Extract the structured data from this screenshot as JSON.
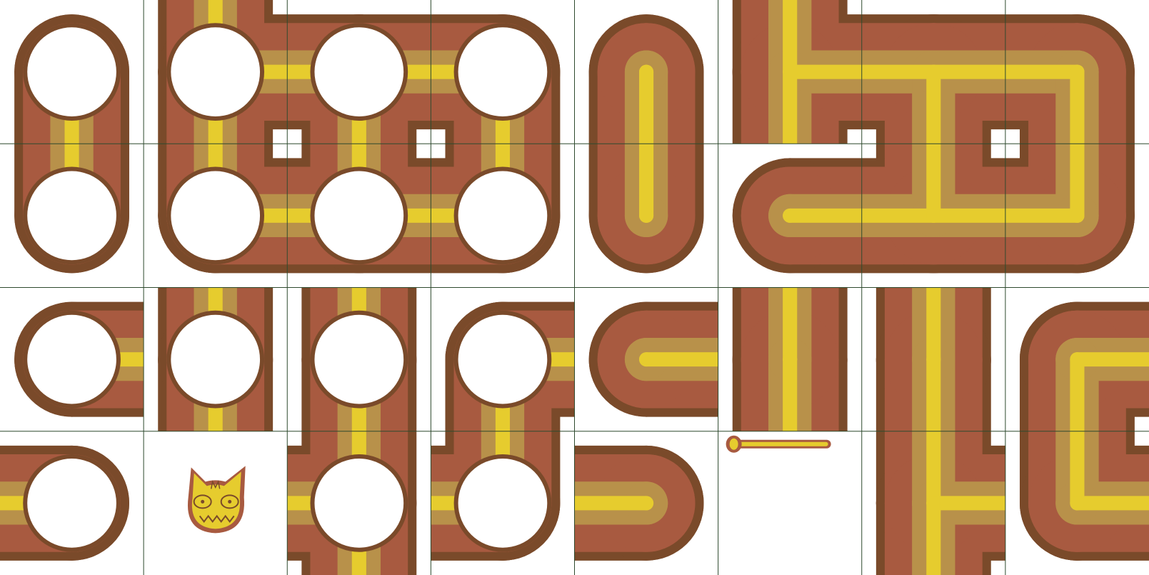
{
  "game": {
    "columns": 8,
    "rows": 4,
    "colors": {
      "background": "#ffffff",
      "grid": "#2e4a2e",
      "pipe_outline": "#7a4a2a",
      "pipe_body": "#a85a40",
      "pipe_glaze": "#b8914a",
      "pipe_core": "#e6cc2e"
    },
    "cells": [
      {
        "row": 0,
        "col": 0,
        "piece": "pipe-with-hole",
        "holes": 1,
        "openings": [
          "S"
        ]
      },
      {
        "row": 0,
        "col": 1,
        "piece": "pipe-junction-with-hole",
        "holes": 1,
        "openings": [
          "N",
          "E",
          "S"
        ]
      },
      {
        "row": 0,
        "col": 2,
        "piece": "pipe-cross-with-hole",
        "holes": 1,
        "openings": [
          "W",
          "E",
          "S"
        ]
      },
      {
        "row": 0,
        "col": 3,
        "piece": "pipe-bend-with-hole",
        "holes": 1,
        "openings": [
          "W",
          "S"
        ]
      },
      {
        "row": 0,
        "col": 4,
        "piece": "pipe-end",
        "holes": 0,
        "openings": [
          "S"
        ]
      },
      {
        "row": 0,
        "col": 5,
        "piece": "pipe-cross",
        "holes": 0,
        "openings": [
          "N",
          "E",
          "S"
        ]
      },
      {
        "row": 0,
        "col": 6,
        "piece": "pipe-tee",
        "holes": 0,
        "openings": [
          "W",
          "E",
          "S"
        ]
      },
      {
        "row": 0,
        "col": 7,
        "piece": "pipe-bend",
        "holes": 0,
        "openings": [
          "W",
          "S"
        ]
      },
      {
        "row": 1,
        "col": 0,
        "piece": "pipe-with-hole",
        "holes": 1,
        "openings": [
          "N"
        ]
      },
      {
        "row": 1,
        "col": 1,
        "piece": "pipe-with-hole",
        "holes": 1,
        "openings": [
          "N",
          "E"
        ]
      },
      {
        "row": 1,
        "col": 2,
        "piece": "pipe-junction-with-hole",
        "holes": 1,
        "openings": [
          "N",
          "W",
          "E"
        ]
      },
      {
        "row": 1,
        "col": 3,
        "piece": "pipe-bend-with-hole",
        "holes": 1,
        "openings": [
          "N",
          "W"
        ]
      },
      {
        "row": 1,
        "col": 4,
        "piece": "pipe-end",
        "holes": 0,
        "openings": [
          "N"
        ]
      },
      {
        "row": 1,
        "col": 5,
        "piece": "pipe-straight",
        "holes": 0,
        "openings": [
          "E"
        ]
      },
      {
        "row": 1,
        "col": 6,
        "piece": "pipe-tee",
        "holes": 0,
        "openings": [
          "N",
          "W",
          "E"
        ]
      },
      {
        "row": 1,
        "col": 7,
        "piece": "pipe-bend",
        "holes": 0,
        "openings": [
          "N",
          "W"
        ]
      },
      {
        "row": 2,
        "col": 0,
        "piece": "pipe-end-with-hole",
        "holes": 1,
        "openings": [
          "E"
        ]
      },
      {
        "row": 2,
        "col": 1,
        "piece": "pipe-vertical-with-hole",
        "holes": 1,
        "openings": [
          "N",
          "S"
        ]
      },
      {
        "row": 2,
        "col": 2,
        "piece": "pipe-vertical-with-hole",
        "holes": 1,
        "openings": [
          "N",
          "S"
        ]
      },
      {
        "row": 2,
        "col": 3,
        "piece": "pipe-bend-with-hole",
        "holes": 1,
        "openings": [
          "E",
          "S"
        ]
      },
      {
        "row": 2,
        "col": 4,
        "piece": "pipe-end",
        "holes": 0,
        "openings": [
          "E"
        ]
      },
      {
        "row": 2,
        "col": 5,
        "piece": "pipe-vertical",
        "holes": 0,
        "openings": [
          "N",
          "S"
        ]
      },
      {
        "row": 2,
        "col": 6,
        "piece": "pipe-vertical",
        "holes": 0,
        "openings": [
          "N",
          "S"
        ]
      },
      {
        "row": 2,
        "col": 7,
        "piece": "pipe-bend",
        "holes": 0,
        "openings": [
          "E",
          "S"
        ]
      },
      {
        "row": 3,
        "col": 0,
        "piece": "pipe-end-with-hole",
        "holes": 1,
        "openings": [
          "W"
        ]
      },
      {
        "row": 3,
        "col": 1,
        "piece": "cat-mascot",
        "holes": 0,
        "openings": []
      },
      {
        "row": 3,
        "col": 2,
        "piece": "pipe-tee-with-hole",
        "holes": 1,
        "openings": [
          "N",
          "W",
          "S"
        ]
      },
      {
        "row": 3,
        "col": 3,
        "piece": "pipe-bend-with-hole",
        "holes": 1,
        "openings": [
          "N",
          "W"
        ]
      },
      {
        "row": 3,
        "col": 4,
        "piece": "pipe-end",
        "holes": 0,
        "openings": [
          "W"
        ]
      },
      {
        "row": 3,
        "col": 5,
        "piece": "stick",
        "holes": 0,
        "openings": []
      },
      {
        "row": 3,
        "col": 6,
        "piece": "pipe-tee",
        "holes": 0,
        "openings": [
          "N",
          "E",
          "S"
        ]
      },
      {
        "row": 3,
        "col": 7,
        "piece": "pipe-bend",
        "holes": 0,
        "openings": [
          "N",
          "E"
        ]
      }
    ]
  }
}
